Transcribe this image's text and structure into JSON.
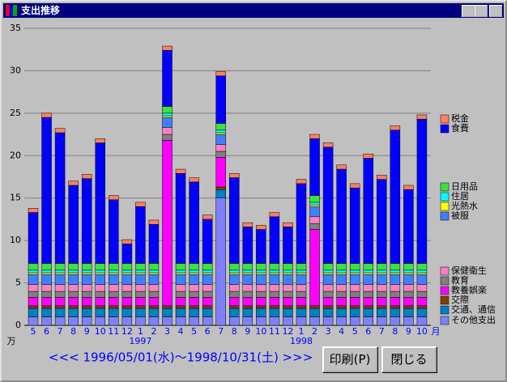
{
  "window_title": "支出推移",
  "chart_data": {
    "type": "stacked_bar",
    "categories": [
      "5",
      "6",
      "7",
      "8",
      "9",
      "10",
      "11",
      "12",
      "1",
      "2",
      "3",
      "4",
      "5",
      "6",
      "7",
      "8",
      "9",
      "10",
      "11",
      "12",
      "1",
      "2",
      "3",
      "4",
      "5",
      "6",
      "7",
      "8",
      "9",
      "10"
    ],
    "years": [
      null,
      null,
      null,
      null,
      null,
      null,
      null,
      null,
      "1997",
      null,
      null,
      null,
      null,
      null,
      null,
      null,
      null,
      null,
      null,
      null,
      "1998",
      null,
      null,
      null,
      null,
      null,
      null,
      null,
      null,
      null
    ],
    "y_unit": "万",
    "x_unit": "月",
    "ylim": [
      0,
      35
    ],
    "yticks": [
      0,
      5,
      10,
      15,
      20,
      25,
      30,
      35
    ],
    "grid": true,
    "series": [
      {
        "name": "その他支出",
        "color": "#8080ff",
        "values": [
          1,
          1,
          1,
          1,
          1,
          1,
          1,
          1,
          1,
          1,
          1,
          1,
          1,
          1,
          15,
          1,
          1,
          1,
          1,
          1,
          1,
          1,
          1,
          1,
          1,
          1,
          1,
          1,
          1,
          1
        ]
      },
      {
        "name": "交通、通信",
        "color": "#0080c0",
        "values": [
          1,
          1,
          1,
          1,
          1,
          1,
          1,
          1,
          1,
          1,
          1,
          1,
          1,
          1,
          1,
          1,
          1,
          1,
          1,
          1,
          1,
          1,
          1,
          1,
          1,
          1,
          1,
          1,
          1,
          1
        ]
      },
      {
        "name": "交際",
        "color": "#804000",
        "values": [
          0.3,
          0.3,
          0.3,
          0.3,
          0.3,
          0.3,
          0.3,
          0.3,
          0.3,
          0.3,
          0.3,
          0.3,
          0.3,
          0.3,
          0.3,
          0.3,
          0.3,
          0.3,
          0.3,
          0.3,
          0.3,
          0.3,
          0.3,
          0.3,
          0.3,
          0.3,
          0.3,
          0.3,
          0.3,
          0.3
        ]
      },
      {
        "name": "教養娯楽",
        "color": "#ff00ff",
        "values": [
          1,
          1,
          1,
          1,
          1,
          1,
          1,
          1,
          1,
          1,
          19.5,
          1,
          1,
          1,
          3.5,
          1,
          1,
          1,
          1,
          1,
          1,
          9,
          1,
          1,
          1,
          1,
          1,
          1,
          1,
          1
        ]
      },
      {
        "name": "教育",
        "color": "#808080",
        "values": [
          0.7,
          0.7,
          0.7,
          0.7,
          0.7,
          0.7,
          0.7,
          0.7,
          0.7,
          0.7,
          0.7,
          0.7,
          0.7,
          0.7,
          0.7,
          0.7,
          0.7,
          0.7,
          0.7,
          0.7,
          0.7,
          0.7,
          0.7,
          0.7,
          0.7,
          0.7,
          0.7,
          0.7,
          0.7,
          0.7
        ]
      },
      {
        "name": "保健衛生",
        "color": "#ff80c0",
        "values": [
          0.8,
          0.8,
          0.8,
          0.8,
          0.8,
          0.8,
          0.8,
          0.8,
          0.8,
          0.8,
          0.8,
          0.8,
          0.8,
          0.8,
          0.8,
          0.8,
          0.8,
          0.8,
          0.8,
          0.8,
          0.8,
          0.8,
          0.8,
          0.8,
          0.8,
          0.8,
          0.8,
          0.8,
          0.8,
          0.8
        ]
      },
      {
        "name": "被服",
        "color": "#4080ff",
        "values": [
          1.2,
          1.2,
          1.2,
          1.2,
          1.2,
          1.2,
          1.2,
          1.2,
          1.2,
          1.2,
          1.2,
          1.2,
          1.2,
          1.2,
          1.2,
          1.2,
          1.2,
          1.2,
          1.2,
          1.2,
          1.2,
          1.2,
          1.2,
          1.2,
          1.2,
          1.2,
          1.2,
          1.2,
          1.2,
          1.2
        ]
      },
      {
        "name": "光熱水",
        "color": "#ffff00",
        "values": [
          0.2,
          0.2,
          0.2,
          0.2,
          0.2,
          0.2,
          0.2,
          0.2,
          0.2,
          0.2,
          0.2,
          0.2,
          0.2,
          0.2,
          0.2,
          0.2,
          0.2,
          0.2,
          0.2,
          0.2,
          0.2,
          0.2,
          0.2,
          0.2,
          0.2,
          0.2,
          0.2,
          0.2,
          0.2,
          0.2
        ]
      },
      {
        "name": "住居",
        "color": "#00ffff",
        "values": [
          0.3,
          0.3,
          0.3,
          0.3,
          0.3,
          0.3,
          0.3,
          0.3,
          0.3,
          0.3,
          0.3,
          0.3,
          0.3,
          0.3,
          0.3,
          0.3,
          0.3,
          0.3,
          0.3,
          0.3,
          0.3,
          0.3,
          0.3,
          0.3,
          0.3,
          0.3,
          0.3,
          0.3,
          0.3,
          0.3
        ]
      },
      {
        "name": "日用品",
        "color": "#40e040",
        "values": [
          0.8,
          0.8,
          0.8,
          0.8,
          0.8,
          0.8,
          0.8,
          0.8,
          0.8,
          0.8,
          0.8,
          0.8,
          0.8,
          0.8,
          0.8,
          0.8,
          0.8,
          0.8,
          0.8,
          0.8,
          0.8,
          0.8,
          0.8,
          0.8,
          0.8,
          0.8,
          0.8,
          0.8,
          0.8,
          0.8
        ]
      },
      {
        "name": "食費",
        "color": "#0000ff",
        "values": [
          6.0,
          17.2,
          15.4,
          9.2,
          10.0,
          14.2,
          7.5,
          2.3,
          6.7,
          4.6,
          6.6,
          10.6,
          9.6,
          5.2,
          5.6,
          10.1,
          4.3,
          4.0,
          5.5,
          4.3,
          9.4,
          6.7,
          13.7,
          11.1,
          8.9,
          12.4,
          9.9,
          15.7,
          8.7,
          17.0
        ]
      },
      {
        "name": "税金",
        "color": "#ff8060",
        "values": [
          0.5,
          0.5,
          0.5,
          0.5,
          0.5,
          0.5,
          0.5,
          0.5,
          0.5,
          0.5,
          0.5,
          0.5,
          0.5,
          0.5,
          0.5,
          0.5,
          0.5,
          0.5,
          0.5,
          0.5,
          0.5,
          0.5,
          0.5,
          0.5,
          0.5,
          0.5,
          0.5,
          0.5,
          0.5,
          0.5
        ]
      }
    ]
  },
  "period": "<<< 1996/05/01(水)～1998/10/31(土) >>>",
  "buttons": [
    "印刷(P)",
    "閉じる"
  ]
}
